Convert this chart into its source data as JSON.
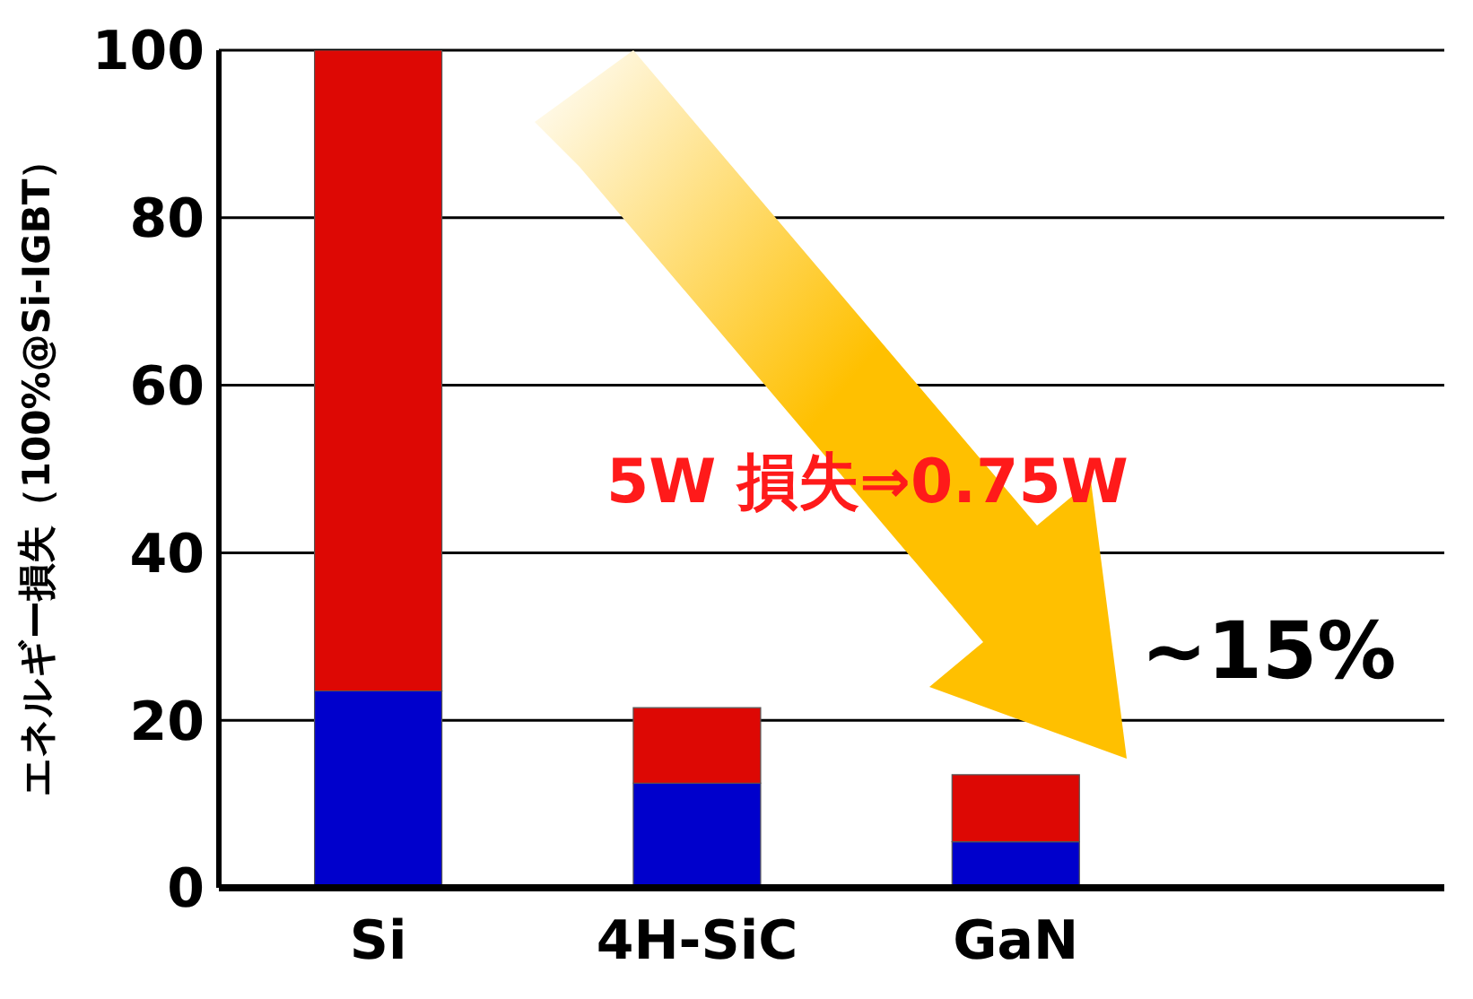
{
  "chart_data": {
    "type": "bar",
    "stacked": true,
    "ylabel": "エネルギー損失（100%@Si-IGBT）",
    "categories": [
      "Si",
      "4H-SiC",
      "GaN"
    ],
    "series": [
      {
        "color": "#0000cc",
        "values": [
          23.5,
          12.5,
          5.5
        ]
      },
      {
        "color": "#dd0804",
        "values": [
          76.5,
          9,
          8
        ]
      }
    ],
    "ylim": [
      0,
      100
    ],
    "yticks": [
      0,
      20,
      40,
      60,
      80,
      100
    ],
    "grid": "y",
    "annotations": [
      "5W 損失⇒0.75W",
      "~15%"
    ]
  }
}
